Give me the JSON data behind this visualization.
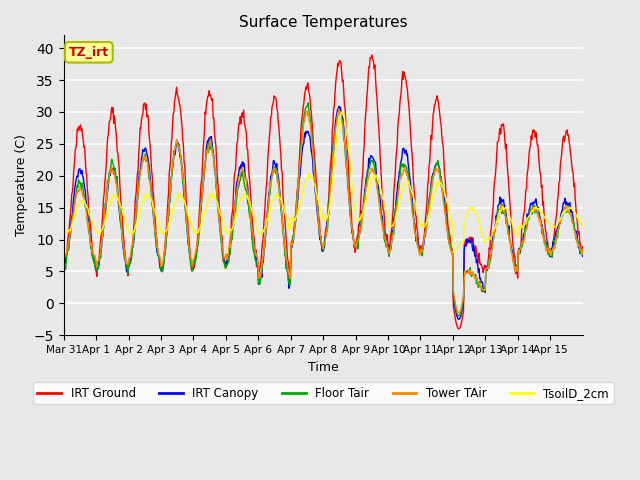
{
  "title": "Surface Temperatures",
  "xlabel": "Time",
  "ylabel": "Temperature (C)",
  "ylim": [
    -5,
    42
  ],
  "yticks": [
    -5,
    0,
    5,
    10,
    15,
    20,
    25,
    30,
    35,
    40
  ],
  "series": {
    "IRT Ground": {
      "color": "#FF0000",
      "lw": 1.5
    },
    "IRT Canopy": {
      "color": "#0000FF",
      "lw": 1.5
    },
    "Floor Tair": {
      "color": "#00AA00",
      "lw": 1.5
    },
    "Tower TAir": {
      "color": "#FF8800",
      "lw": 1.5
    },
    "TsoilD_2cm": {
      "color": "#FFFF00",
      "lw": 1.5
    }
  },
  "bg_color": "#E8E8E8",
  "annotation": "TZ_irt",
  "annotation_color": "#CC0000",
  "annotation_bg": "#FFFF99",
  "annotation_border": "#AABB00",
  "xticklabels": [
    "Mar 31",
    "Apr 1",
    "Apr 2",
    "Apr 3",
    "Apr 4",
    "Apr 5",
    "Apr 6",
    "Apr 7",
    "Apr 8",
    "Apr 9",
    "Apr 10",
    "Apr 11",
    "Apr 12",
    "Apr 13",
    "Apr 14",
    "Apr 15"
  ],
  "n_days": 16
}
